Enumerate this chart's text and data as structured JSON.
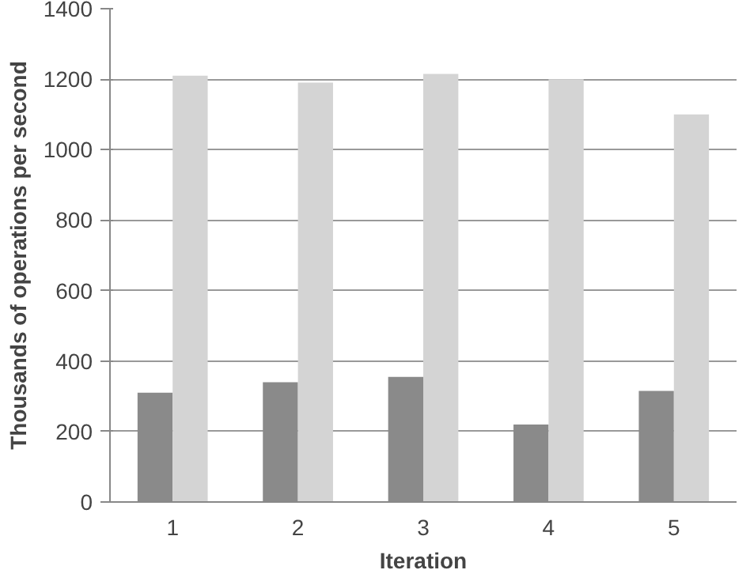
{
  "chart_data": {
    "type": "bar",
    "xlabel": "Iteration",
    "ylabel": "Thousands of operations per second",
    "categories": [
      "1",
      "2",
      "3",
      "4",
      "5"
    ],
    "series": [
      {
        "color": "#8a8a8a",
        "values": [
          310,
          340,
          355,
          220,
          315
        ]
      },
      {
        "color": "#d4d4d4",
        "values": [
          1210,
          1190,
          1215,
          1200,
          1100
        ]
      }
    ],
    "ylim": [
      0,
      1400
    ],
    "yticks": [
      0,
      200,
      400,
      600,
      800,
      1000,
      1200,
      1400
    ],
    "grid": "y"
  }
}
